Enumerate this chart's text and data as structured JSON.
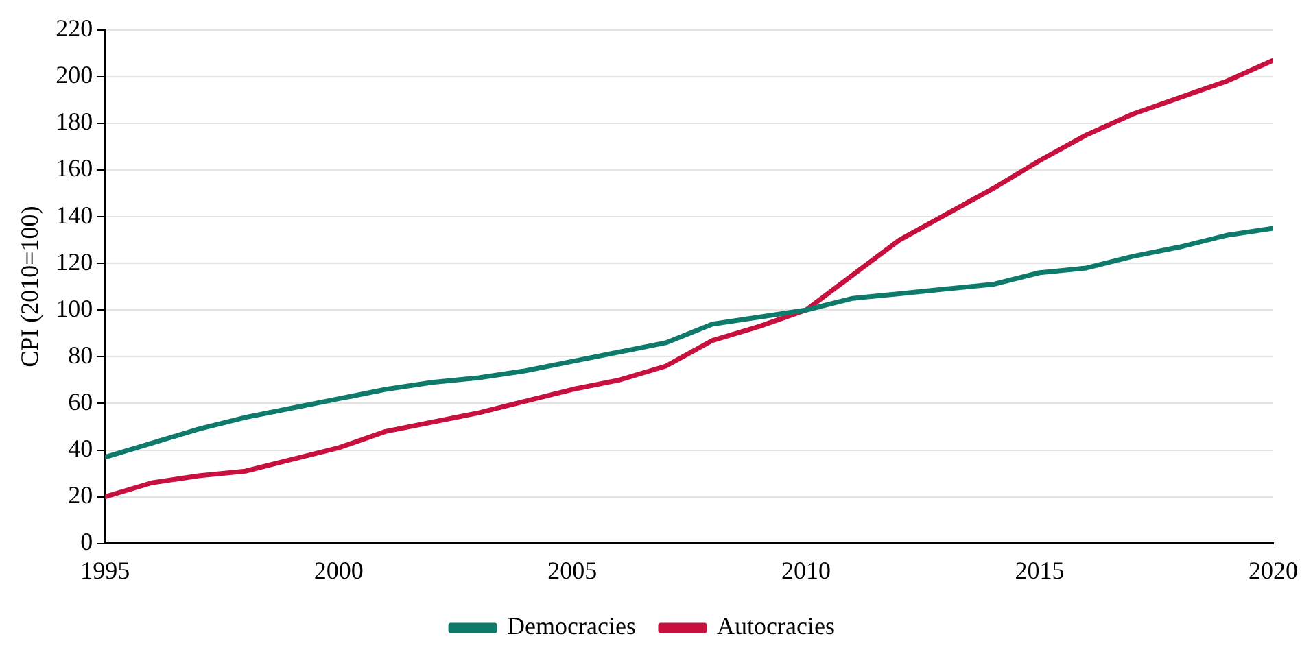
{
  "chart_data": {
    "type": "line",
    "ylabel": "CPI (2010=100)",
    "x": [
      1995,
      1996,
      1997,
      1998,
      1999,
      2000,
      2001,
      2002,
      2003,
      2004,
      2005,
      2006,
      2007,
      2008,
      2009,
      2010,
      2011,
      2012,
      2013,
      2014,
      2015,
      2016,
      2017,
      2018,
      2019,
      2020
    ],
    "series": [
      {
        "name": "Democracies",
        "color": "#0e7a6b",
        "values": [
          37,
          43,
          49,
          54,
          58,
          62,
          66,
          69,
          71,
          74,
          78,
          82,
          86,
          94,
          97,
          100,
          105,
          107,
          109,
          111,
          116,
          118,
          123,
          127,
          132,
          135
        ]
      },
      {
        "name": "Autocracies",
        "color": "#c8103e",
        "values": [
          20,
          26,
          29,
          31,
          36,
          41,
          48,
          52,
          56,
          61,
          66,
          70,
          76,
          87,
          93,
          100,
          115,
          130,
          141,
          152,
          164,
          175,
          184,
          191,
          198,
          207
        ]
      }
    ],
    "xlim": [
      1995,
      2020
    ],
    "xticks": [
      1995,
      2000,
      2005,
      2010,
      2015,
      2020
    ],
    "ylim": [
      0,
      220
    ],
    "yticks": [
      0,
      20,
      40,
      60,
      80,
      100,
      120,
      140,
      160,
      180,
      200,
      220
    ],
    "grid": "y",
    "legend": "bottom",
    "marker": "none",
    "line_style": "solid"
  }
}
